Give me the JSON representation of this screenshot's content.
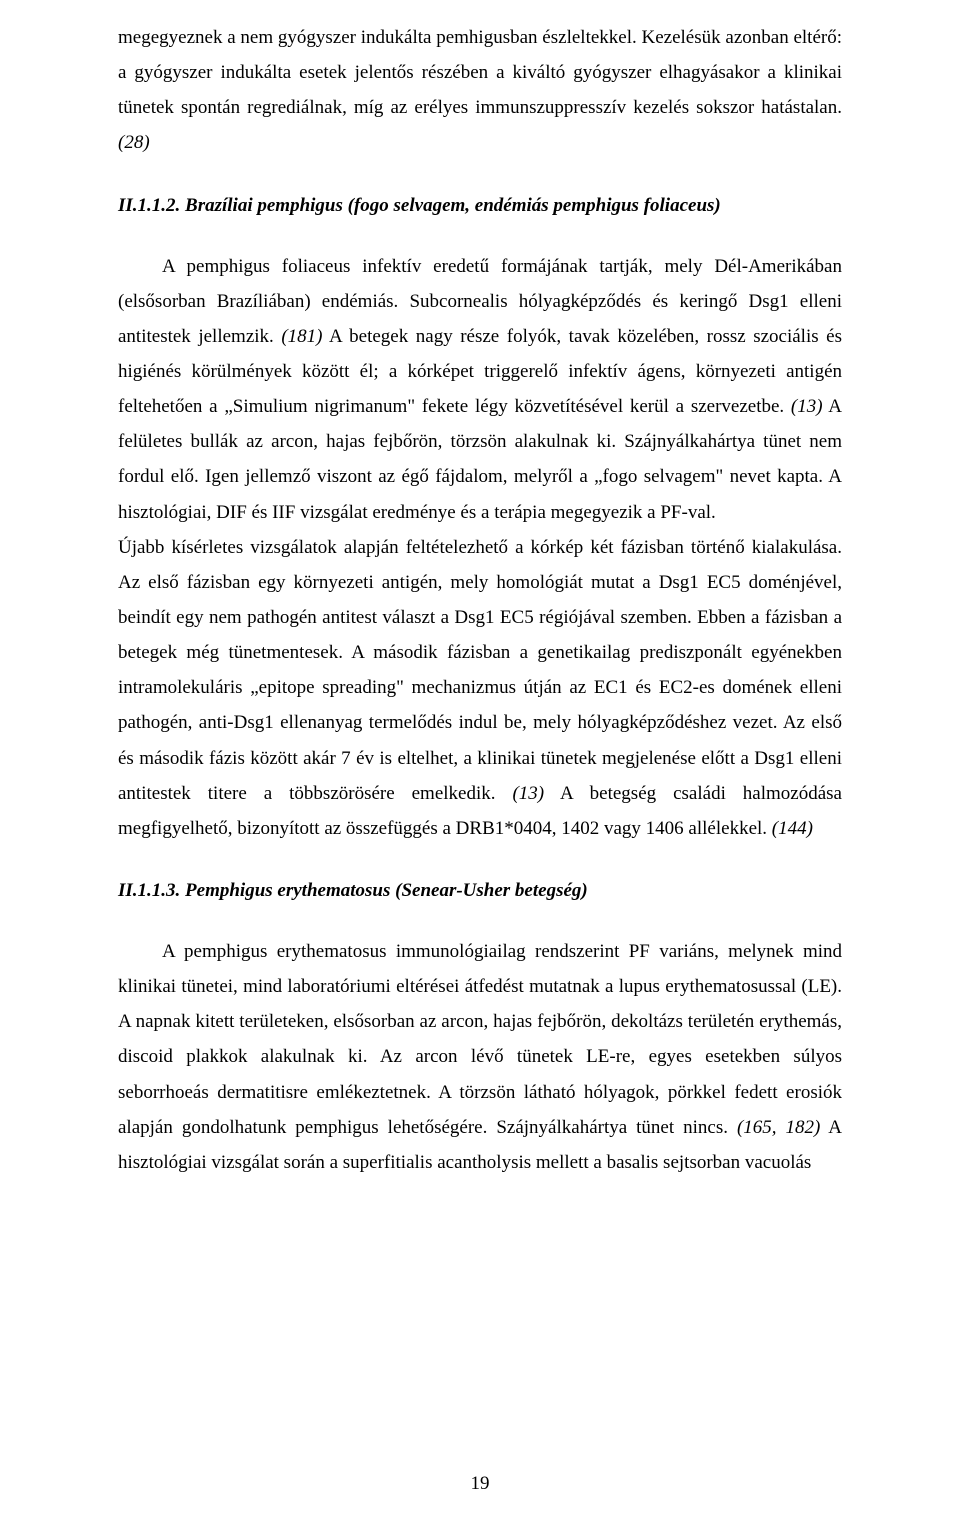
{
  "para1": "megegyeznek a nem gyógyszer indukálta pemhigusban észleltekkel. Kezelésük azonban eltérő: a gyógyszer indukálta esetek jelentős részében a kiváltó gyógyszer elhagyásakor a klinikai tünetek spontán regrediálnak, míg az erélyes immunszuppresszív kezelés sokszor hatástalan. ",
  "ref1": "(28)",
  "heading1": "II.1.1.2. Brazíliai pemphigus (fogo selvagem, endémiás pemphigus foliaceus)",
  "para2a": "A pemphigus foliaceus infektív eredetű formájának tartják, mely Dél-Amerikában (elsősorban Brazíliában) endémiás. Subcornealis hólyagképződés és keringő Dsg1 elleni antitestek jellemzik. ",
  "ref2a": "(181)",
  "para2b": " A betegek nagy része folyók, tavak közelében, rossz szociális és higiénés körülmények között él; a kórképet triggerelő infektív ágens, környezeti antigén feltehetően a „Simulium nigrimanum\" fekete légy közvetítésével kerül a szervezetbe. ",
  "ref2b": "(13)",
  "para2c": " A felületes bullák az arcon, hajas fejbőrön, törzsön alakulnak ki. Szájnyálkahártya tünet nem fordul elő. Igen jellemző viszont az égő fájdalom, melyről a „fogo selvagem\" nevet kapta. A hisztológiai, DIF és IIF vizsgálat eredménye és a terápia megegyezik a PF-val.",
  "para3a": "Újabb kísérletes vizsgálatok alapján feltételezhető a kórkép két fázisban történő kialakulása. Az első fázisban egy környezeti antigén, mely homológiát mutat a Dsg1 EC5 doménjével, beindít egy nem pathogén antitest választ a Dsg1 EC5 régiójával szemben. Ebben a fázisban a betegek még tünetmentesek. A második fázisban a genetikailag prediszponált egyénekben intramolekuláris „epitope spreading\" mechanizmus útján az EC1 és EC2-es domének elleni pathogén, anti-Dsg1 ellenanyag termelődés indul be, mely hólyagképződéshez vezet. Az első és második fázis között akár 7 év is eltelhet, a klinikai tünetek megjelenése előtt a Dsg1 elleni antitestek titere a többszörösére emelkedik. ",
  "ref3a": "(13)",
  "para3b": " A betegség családi halmozódása megfigyelhető, bizonyított az összefüggés a DRB1*0404, 1402 vagy 1406 allélekkel. ",
  "ref3b": "(144)",
  "heading2": "II.1.1.3. Pemphigus erythematosus (Senear-Usher betegség)",
  "para4a": "A pemphigus erythematosus immunológiailag rendszerint PF variáns, melynek mind klinikai tünetei, mind laboratóriumi eltérései átfedést mutatnak a lupus erythematosussal (LE). A napnak kitett területeken, elsősorban az arcon, hajas fejbőrön, dekoltázs területén erythemás, discoid plakkok alakulnak ki. Az arcon lévő tünetek LE-re, egyes esetekben súlyos seborrhoeás dermatitisre emlékeztetnek. A törzsön látható hólyagok, pörkkel fedett erosiók alapján gondolhatunk pemphigus lehetőségére. Szájnyálkahártya tünet nincs. ",
  "ref4a": "(165, 182)",
  "para4b": " A hisztológiai vizsgálat során a superfitialis acantholysis mellett a basalis sejtsorban vacuolás",
  "pageNumber": "19"
}
